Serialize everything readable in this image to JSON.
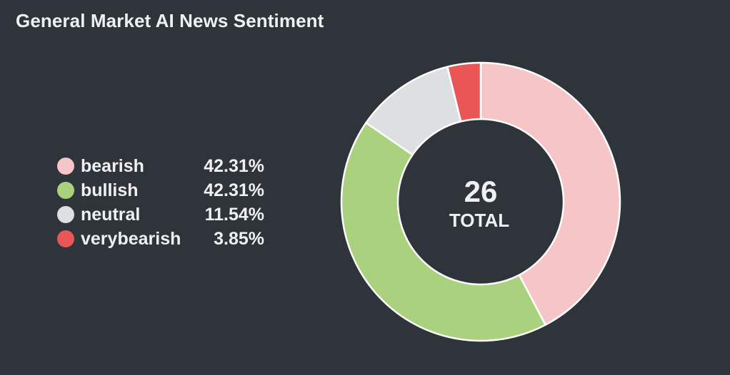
{
  "title": "General Market AI News Sentiment",
  "chart_data": {
    "type": "pie",
    "variant": "donut",
    "title": "General Market AI News Sentiment",
    "categories": [
      "bearish",
      "bullish",
      "neutral",
      "verybearish"
    ],
    "values": [
      11,
      11,
      3,
      1
    ],
    "percent_labels": [
      "42.31%",
      "42.31%",
      "11.54%",
      "3.85%"
    ],
    "colors": [
      "#f5c5c7",
      "#a9d17e",
      "#dedfe1",
      "#e85656"
    ],
    "total": "26",
    "total_label": "TOTAL",
    "legend_position": "left"
  }
}
